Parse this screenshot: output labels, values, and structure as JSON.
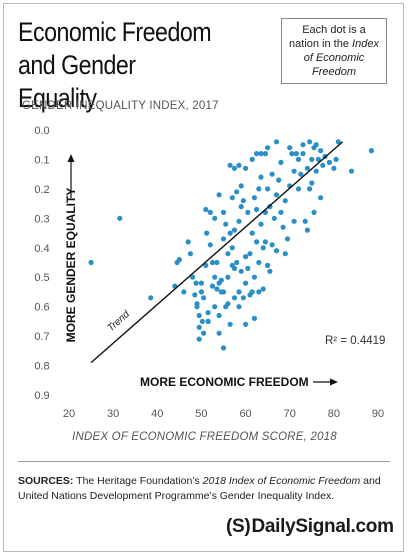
{
  "title_line1": "Economic Freedom",
  "title_line2": "and Gender Equality",
  "note": {
    "line1": "Each dot is a",
    "line2_prefix": "nation in the ",
    "line2_italic": "Index",
    "line3_italic": "of Economic",
    "line4_italic": "Freedom"
  },
  "sources": {
    "label": "SOURCES:",
    "text1": " The Heritage Foundation’s ",
    "italic": "2018 Index of Economic Freedom",
    "text2": " and United Nations Development Programme’s Gender Inequality Index."
  },
  "logo": {
    "mark": "(S)",
    "text": "DailySignal.com"
  },
  "colors": {
    "dot": "#2a8fc7",
    "trend": "#111111",
    "axis_text": "#555555"
  },
  "chart_data": {
    "type": "scatter",
    "ylabel": "GENDER INEQUALITY INDEX, 2017",
    "xlabel_italic": "INDEX OF ECONOMIC FREEDOM",
    "xlabel_rest": " SCORE, 2018",
    "xlim": [
      20,
      90
    ],
    "ylim": [
      0.0,
      0.9
    ],
    "y_inverted": true,
    "x_ticks": [
      "20",
      "30",
      "40",
      "50",
      "60",
      "70",
      "80",
      "90"
    ],
    "y_ticks": [
      "0.0",
      "0.1",
      "0.2",
      "0.3",
      "0.4",
      "0.5",
      "0.6",
      "0.7",
      "0.8",
      "0.9"
    ],
    "grid": false,
    "annotations": {
      "y_arrow_label": "MORE GENDER EQUALITY",
      "x_arrow_label": "MORE ECONOMIC FREEDOM",
      "trend_label": "Trend",
      "r_squared": "R² = 0.4419"
    },
    "trend_line": {
      "x": [
        25,
        82
      ],
      "y": [
        0.79,
        0.04
      ]
    },
    "points": [
      [
        25,
        0.45
      ],
      [
        31.5,
        0.3
      ],
      [
        38.5,
        0.57
      ],
      [
        44,
        0.53
      ],
      [
        44.5,
        0.45
      ],
      [
        45,
        0.44
      ],
      [
        46,
        0.55
      ],
      [
        47,
        0.38
      ],
      [
        47.5,
        0.42
      ],
      [
        48,
        0.5
      ],
      [
        48.5,
        0.56
      ],
      [
        48.8,
        0.52
      ],
      [
        49,
        0.59
      ],
      [
        49,
        0.6
      ],
      [
        49.5,
        0.63
      ],
      [
        49.5,
        0.67
      ],
      [
        49.5,
        0.71
      ],
      [
        50,
        0.52
      ],
      [
        50,
        0.55
      ],
      [
        50.2,
        0.65
      ],
      [
        50.5,
        0.57
      ],
      [
        50.5,
        0.69
      ],
      [
        51,
        0.46
      ],
      [
        51,
        0.27
      ],
      [
        51.2,
        0.35
      ],
      [
        51.5,
        0.62
      ],
      [
        51.5,
        0.65
      ],
      [
        51.5,
        0.65
      ],
      [
        52,
        0.28
      ],
      [
        52,
        0.39
      ],
      [
        52.5,
        0.53
      ],
      [
        52.5,
        0.45
      ],
      [
        53,
        0.3
      ],
      [
        53,
        0.5
      ],
      [
        53,
        0.6
      ],
      [
        53.5,
        0.54
      ],
      [
        53.5,
        0.45
      ],
      [
        54,
        0.22
      ],
      [
        54,
        0.52
      ],
      [
        54,
        0.63
      ],
      [
        54,
        0.69
      ],
      [
        54.5,
        0.51
      ],
      [
        54.5,
        0.55
      ],
      [
        55,
        0.28
      ],
      [
        55,
        0.37
      ],
      [
        55,
        0.55
      ],
      [
        55,
        0.74
      ],
      [
        55.5,
        0.32
      ],
      [
        55.5,
        0.6
      ],
      [
        56,
        0.42
      ],
      [
        56,
        0.5
      ],
      [
        56,
        0.59
      ],
      [
        56.5,
        0.12
      ],
      [
        56.5,
        0.35
      ],
      [
        56.5,
        0.66
      ],
      [
        57,
        0.23
      ],
      [
        57,
        0.46
      ],
      [
        57,
        0.4
      ],
      [
        57.5,
        0.13
      ],
      [
        57.5,
        0.34
      ],
      [
        57.5,
        0.47
      ],
      [
        57.5,
        0.57
      ],
      [
        58,
        0.21
      ],
      [
        58,
        0.45
      ],
      [
        58.5,
        0.12
      ],
      [
        58.5,
        0.31
      ],
      [
        58.5,
        0.6
      ],
      [
        58.5,
        0.55
      ],
      [
        59,
        0.26
      ],
      [
        59,
        0.19
      ],
      [
        59,
        0.48
      ],
      [
        59.5,
        0.24
      ],
      [
        59.5,
        0.57
      ],
      [
        60,
        0.13
      ],
      [
        60,
        0.43
      ],
      [
        60,
        0.52
      ],
      [
        60,
        0.66
      ],
      [
        60.5,
        0.28
      ],
      [
        60.5,
        0.47
      ],
      [
        61,
        0.42
      ],
      [
        61,
        0.56
      ],
      [
        61.5,
        0.35
      ],
      [
        61.5,
        0.1
      ],
      [
        61.5,
        0.55
      ],
      [
        62,
        0.23
      ],
      [
        62,
        0.5
      ],
      [
        62,
        0.64
      ],
      [
        62.5,
        0.08
      ],
      [
        62.5,
        0.27
      ],
      [
        62.5,
        0.38
      ],
      [
        63,
        0.2
      ],
      [
        63,
        0.45
      ],
      [
        63,
        0.55
      ],
      [
        63.5,
        0.08
      ],
      [
        63.5,
        0.16
      ],
      [
        63.5,
        0.32
      ],
      [
        64,
        0.4
      ],
      [
        64,
        0.54
      ],
      [
        64.5,
        0.08
      ],
      [
        64.5,
        0.28
      ],
      [
        64.5,
        0.38
      ],
      [
        65,
        0.2
      ],
      [
        65,
        0.46
      ],
      [
        65,
        0.06
      ],
      [
        65.5,
        0.26
      ],
      [
        65.5,
        0.48
      ],
      [
        66,
        0.15
      ],
      [
        66,
        0.39
      ],
      [
        66.5,
        0.3
      ],
      [
        67,
        0.04
      ],
      [
        67,
        0.22
      ],
      [
        67,
        0.41
      ],
      [
        67.5,
        0.17
      ],
      [
        68,
        0.28
      ],
      [
        68,
        0.11
      ],
      [
        68.5,
        0.33
      ],
      [
        69,
        0.24
      ],
      [
        69,
        0.42
      ],
      [
        69.5,
        0.37
      ],
      [
        70,
        0.06
      ],
      [
        70,
        0.19
      ],
      [
        70.5,
        0.08
      ],
      [
        71,
        0.31
      ],
      [
        71,
        0.14
      ],
      [
        71.5,
        0.08
      ],
      [
        72,
        0.2
      ],
      [
        72,
        0.1
      ],
      [
        72.5,
        0.15
      ],
      [
        73,
        0.05
      ],
      [
        73,
        0.08
      ],
      [
        73.5,
        0.31
      ],
      [
        74,
        0.13
      ],
      [
        74,
        0.34
      ],
      [
        74.5,
        0.04
      ],
      [
        74.5,
        0.2
      ],
      [
        75,
        0.1
      ],
      [
        75,
        0.18
      ],
      [
        75.5,
        0.06
      ],
      [
        75.5,
        0.28
      ],
      [
        76,
        0.14
      ],
      [
        76,
        0.05
      ],
      [
        76.5,
        0.1
      ],
      [
        77,
        0.23
      ],
      [
        77,
        0.07
      ],
      [
        77.5,
        0.12
      ],
      [
        78,
        0.09
      ],
      [
        79,
        0.11
      ],
      [
        80,
        0.13
      ],
      [
        80.5,
        0.1
      ],
      [
        81,
        0.04
      ],
      [
        84,
        0.14
      ],
      [
        88.5,
        0.07
      ]
    ]
  }
}
